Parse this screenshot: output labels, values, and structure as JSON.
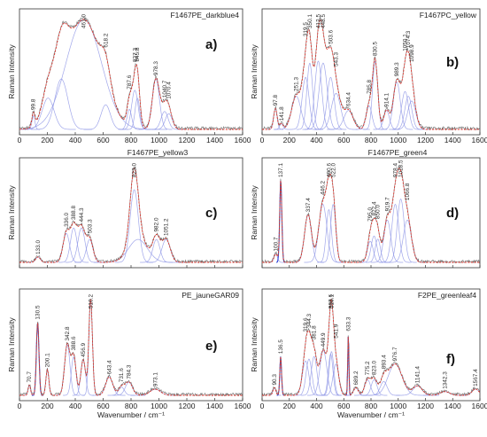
{
  "colors": {
    "component": "#8f97e6",
    "fit": "#e0352d",
    "observed": "#6b6b6b",
    "accent_peak": "#2a3fd6"
  },
  "chart_data": [
    {
      "type": "line",
      "letter": "a)",
      "title": "F1467PE_darkblue4",
      "ylabel": "Raman Intensity",
      "xlabel": "",
      "xlim": [
        0,
        1600
      ],
      "xticks": [
        0,
        200,
        400,
        600,
        800,
        1000,
        1200,
        1400,
        1600
      ],
      "show_xtick_labels": true,
      "peaks": [
        {
          "x": 99.8,
          "height": 0.12,
          "width": 25,
          "label": "99.8"
        },
        {
          "x": 205,
          "height": 0.28,
          "width": 100
        },
        {
          "x": 300,
          "height": 0.45,
          "width": 110
        },
        {
          "x": 461.0,
          "height": 0.98,
          "width": 300,
          "label": "461.0"
        },
        {
          "x": 618.2,
          "height": 0.22,
          "width": 80,
          "label": "618.2"
        },
        {
          "x": 787.6,
          "height": 0.18,
          "width": 40,
          "label": "787.6"
        },
        {
          "x": 827.3,
          "height": 0.35,
          "width": 55,
          "label": "827.3"
        },
        {
          "x": 845.8,
          "height": 0.28,
          "width": 40,
          "label": "845.8"
        },
        {
          "x": 978.3,
          "height": 0.45,
          "width": 60,
          "label": "978.3"
        },
        {
          "x": 1040.7,
          "height": 0.16,
          "width": 60,
          "label": "1040.7"
        },
        {
          "x": 1070.4,
          "height": 0.14,
          "width": 60,
          "label": "1070.4"
        }
      ]
    },
    {
      "type": "line",
      "letter": "b)",
      "title": "F1467PC_yellow",
      "ylabel": "Raman Intensity",
      "xlabel": "",
      "xlim": [
        0,
        1600
      ],
      "xticks": [
        0,
        200,
        400,
        600,
        800,
        1000,
        1200,
        1400,
        1600
      ],
      "show_xtick_labels": true,
      "peaks": [
        {
          "x": 97.8,
          "height": 0.22,
          "width": 30,
          "label": "97.8"
        },
        {
          "x": 141.8,
          "height": 0.06,
          "width": 30,
          "label": "141.8"
        },
        {
          "x": 251.3,
          "height": 0.35,
          "width": 80,
          "label": "251.3"
        },
        {
          "x": 319.5,
          "height": 0.55,
          "width": 60,
          "label": "319.5"
        },
        {
          "x": 350.1,
          "height": 0.7,
          "width": 50,
          "label": "350.1"
        },
        {
          "x": 412.5,
          "height": 0.72,
          "width": 60,
          "label": "412.5"
        },
        {
          "x": 448.5,
          "height": 0.7,
          "width": 70,
          "label": "448.5"
        },
        {
          "x": 503.6,
          "height": 0.55,
          "width": 60,
          "label": "503.6"
        },
        {
          "x": 543.3,
          "height": 0.38,
          "width": 80,
          "label": "543.3"
        },
        {
          "x": 634.4,
          "height": 0.2,
          "width": 80,
          "label": "634.4"
        },
        {
          "x": 785.8,
          "height": 0.25,
          "width": 50,
          "label": "785.8"
        },
        {
          "x": 830.5,
          "height": 0.72,
          "width": 45,
          "label": "830.5"
        },
        {
          "x": 914.1,
          "height": 0.2,
          "width": 50,
          "label": "914.1"
        },
        {
          "x": 989.3,
          "height": 0.5,
          "width": 60,
          "label": "989.3"
        },
        {
          "x": 1050.1,
          "height": 0.4,
          "width": 60,
          "label": "1050.1"
        },
        {
          "x": 1074.3,
          "height": 0.35,
          "width": 60,
          "label": "1074.3"
        },
        {
          "x": 1098.9,
          "height": 0.3,
          "width": 70,
          "label": "1098.9"
        }
      ]
    },
    {
      "type": "line",
      "letter": "c)",
      "title": "F1467PE_yellow3",
      "ylabel": "Raman Intensity",
      "xlabel": "",
      "xlim": [
        0,
        1600
      ],
      "xticks": [
        0,
        200,
        400,
        600,
        800,
        1000,
        1200,
        1400,
        1600
      ],
      "show_xtick_labels": false,
      "peaks": [
        {
          "x": 133.0,
          "height": 0.07,
          "width": 40,
          "label": "133.0"
        },
        {
          "x": 336.0,
          "height": 0.38,
          "width": 55,
          "label": "336.0"
        },
        {
          "x": 388.8,
          "height": 0.45,
          "width": 55,
          "label": "388.8"
        },
        {
          "x": 444.3,
          "height": 0.45,
          "width": 60,
          "label": "444.3"
        },
        {
          "x": 503.3,
          "height": 0.3,
          "width": 55,
          "label": "503.3"
        },
        {
          "x": 823.0,
          "height": 0.95,
          "width": 70,
          "label": "823.0"
        },
        {
          "x": 850,
          "height": 0.3,
          "width": 160
        },
        {
          "x": 982.0,
          "height": 0.3,
          "width": 60,
          "label": "982.0"
        },
        {
          "x": 1051.2,
          "height": 0.3,
          "width": 70,
          "label": "1051.2"
        }
      ]
    },
    {
      "type": "line",
      "letter": "d)",
      "title": "F1467PE_green4",
      "ylabel": "Raman Intensity",
      "xlabel": "",
      "xlim": [
        0,
        1600
      ],
      "xticks": [
        0,
        200,
        400,
        600,
        800,
        1000,
        1200,
        1400,
        1600
      ],
      "show_xtick_labels": false,
      "peaks": [
        {
          "x": 100.7,
          "height": 0.08,
          "width": 30,
          "label": "100.7"
        },
        {
          "x": 137.1,
          "height": 0.78,
          "width": 18,
          "label": "137.1"
        },
        {
          "x": 337.4,
          "height": 0.45,
          "width": 60,
          "label": "337.4"
        },
        {
          "x": 446.2,
          "height": 0.55,
          "width": 70,
          "label": "446.2"
        },
        {
          "x": 490.6,
          "height": 0.5,
          "width": 45,
          "label": "490.6"
        },
        {
          "x": 522.0,
          "height": 0.55,
          "width": 45,
          "label": "522.0"
        },
        {
          "x": 795.0,
          "height": 0.2,
          "width": 50,
          "label": "795.0"
        },
        {
          "x": 822.4,
          "height": 0.25,
          "width": 50,
          "label": "822.4"
        },
        {
          "x": 850.0,
          "height": 0.22,
          "width": 45,
          "label": "850.0"
        },
        {
          "x": 919.7,
          "height": 0.4,
          "width": 60,
          "label": "919.7"
        },
        {
          "x": 978.4,
          "height": 0.55,
          "width": 60,
          "label": "978.4"
        },
        {
          "x": 1018.5,
          "height": 0.6,
          "width": 60,
          "label": "1018.5"
        },
        {
          "x": 1066.8,
          "height": 0.4,
          "width": 70,
          "label": "1066.8"
        }
      ]
    },
    {
      "type": "line",
      "letter": "e)",
      "title": "PE_jauneGAR09",
      "ylabel": "Raman Intensity",
      "xlabel": "Wavenumber / cm⁻¹",
      "xlim": [
        0,
        1600
      ],
      "xticks": [
        0,
        200,
        400,
        600,
        800,
        1000,
        1200,
        1400,
        1600
      ],
      "show_xtick_labels": true,
      "peaks": [
        {
          "x": 70.7,
          "height": 0.1,
          "width": 20,
          "label": "70.7"
        },
        {
          "x": 130.5,
          "height": 0.72,
          "width": 22,
          "label": "130.5"
        },
        {
          "x": 200.1,
          "height": 0.25,
          "width": 25,
          "label": "200.1"
        },
        {
          "x": 342.8,
          "height": 0.5,
          "width": 45,
          "label": "342.8"
        },
        {
          "x": 388.6,
          "height": 0.38,
          "width": 40,
          "label": "388.6"
        },
        {
          "x": 456.9,
          "height": 0.35,
          "width": 40,
          "label": "456.9"
        },
        {
          "x": 510.2,
          "height": 0.95,
          "width": 30,
          "label": "510.2"
        },
        {
          "x": 643.4,
          "height": 0.18,
          "width": 60,
          "label": "643.4"
        },
        {
          "x": 731.6,
          "height": 0.08,
          "width": 50,
          "label": "731.6"
        },
        {
          "x": 784.3,
          "height": 0.13,
          "width": 60,
          "label": "784.3"
        },
        {
          "x": 973.1,
          "height": 0.06,
          "width": 90,
          "label": "973.1"
        }
      ]
    },
    {
      "type": "line",
      "letter": "f)",
      "title": "F2PE_greenleaf4",
      "ylabel": "Raman Intensity",
      "xlabel": "Wavenumber / cm⁻¹",
      "xlim": [
        0,
        1600
      ],
      "xticks": [
        0,
        200,
        400,
        600,
        800,
        1000,
        1200,
        1400,
        1600
      ],
      "show_xtick_labels": true,
      "peaks": [
        {
          "x": 90.3,
          "height": 0.12,
          "width": 25,
          "label": "90.3"
        },
        {
          "x": 136.5,
          "height": 0.62,
          "width": 15,
          "label": "136.5"
        },
        {
          "x": 319.6,
          "height": 0.55,
          "width": 55,
          "label": "319.6"
        },
        {
          "x": 344.3,
          "height": 0.58,
          "width": 50,
          "label": "344.3"
        },
        {
          "x": 381.8,
          "height": 0.62,
          "width": 50,
          "label": "381.8"
        },
        {
          "x": 449.9,
          "height": 0.72,
          "width": 60,
          "label": "449.9"
        },
        {
          "x": 510.1,
          "height": 0.7,
          "width": 40,
          "label": "510.1"
        },
        {
          "x": 503.6,
          "height": 0.66,
          "width": 40,
          "label": "503.6"
        },
        {
          "x": 541.9,
          "height": 0.5,
          "width": 50,
          "label": "541.9"
        },
        {
          "x": 633.3,
          "height": 0.98,
          "width": 10,
          "label": "633.3"
        },
        {
          "x": 689.2,
          "height": 0.12,
          "width": 40,
          "label": "689.2"
        },
        {
          "x": 775.2,
          "height": 0.25,
          "width": 50,
          "label": "775.2"
        },
        {
          "x": 823.0,
          "height": 0.25,
          "width": 50,
          "label": "823.0"
        },
        {
          "x": 893.4,
          "height": 0.22,
          "width": 60,
          "label": "893.4"
        },
        {
          "x": 976.7,
          "height": 0.5,
          "width": 120,
          "label": "976.7"
        },
        {
          "x": 1141.4,
          "height": 0.15,
          "width": 80,
          "label": "1141.4"
        },
        {
          "x": 1342.3,
          "height": 0.06,
          "width": 80,
          "label": "1342.3"
        },
        {
          "x": 1567.4,
          "height": 0.1,
          "width": 60,
          "label": "1567.4"
        }
      ]
    }
  ]
}
